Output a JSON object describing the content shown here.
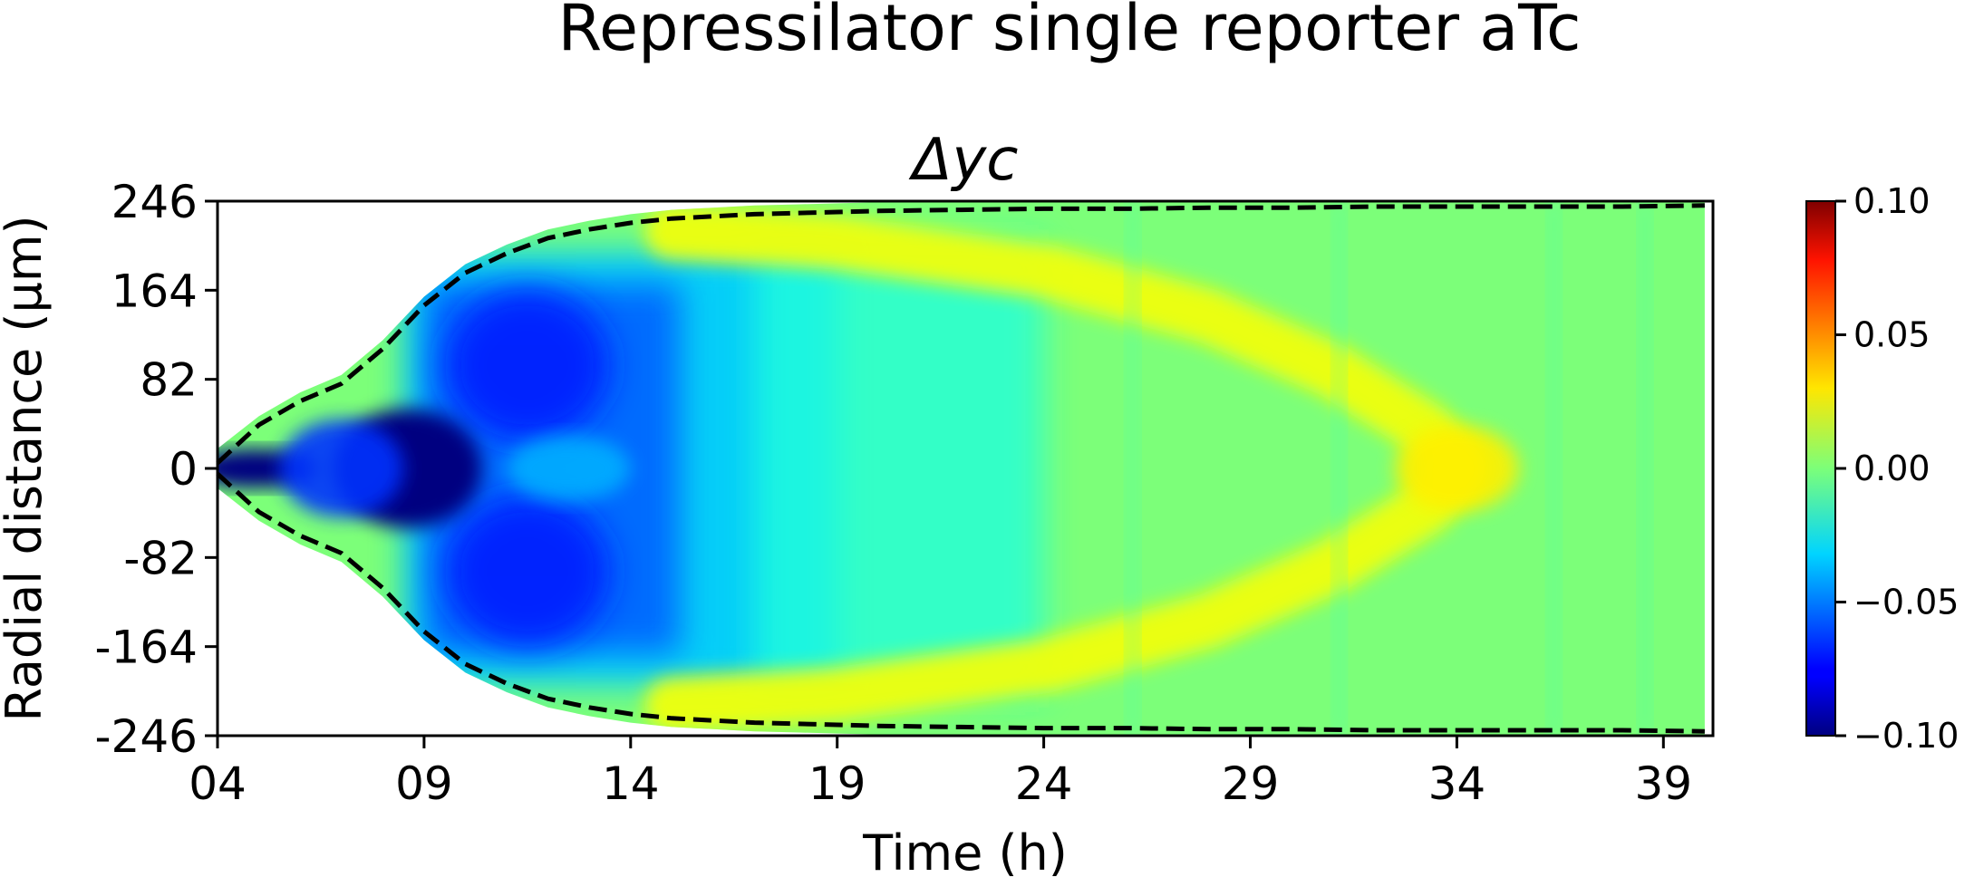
{
  "chart_data": {
    "type": "heatmap",
    "title": "Repressilator single reporter aTc",
    "subtitle": "Δyc",
    "xlabel": "Time (h)",
    "ylabel": "Radial distance (μm)",
    "xlim": [
      4,
      40.2
    ],
    "ylim": [
      -246,
      246
    ],
    "x_ticks": [
      "04",
      "09",
      "14",
      "19",
      "24",
      "29",
      "34",
      "39"
    ],
    "x_tick_values": [
      4,
      9,
      14,
      19,
      24,
      29,
      34,
      39
    ],
    "y_ticks": [
      "246",
      "164",
      "82",
      "0",
      "-82",
      "-164",
      "-246"
    ],
    "y_tick_values": [
      246,
      164,
      82,
      0,
      -82,
      -164,
      -246
    ],
    "colormap": "jet",
    "color_range": [
      -0.1,
      0.1
    ],
    "colorbar_ticks": [
      "0.10",
      "0.05",
      "0.00",
      "−0.05",
      "−0.10"
    ],
    "colorbar_tick_values": [
      0.1,
      0.05,
      0.0,
      -0.05,
      -0.1
    ],
    "colony_edge": {
      "style": "dashed",
      "color": "#000000",
      "time": [
        4,
        5,
        6,
        7,
        8,
        9,
        10,
        11,
        12,
        13,
        14,
        15,
        16,
        17,
        18,
        19,
        20,
        22,
        24,
        26,
        28,
        30,
        32,
        34,
        36,
        38,
        40
      ],
      "radius": [
        5,
        40,
        62,
        78,
        110,
        150,
        180,
        198,
        212,
        220,
        226,
        230,
        232,
        234,
        235,
        236,
        237,
        238,
        239,
        239,
        240,
        240,
        241,
        241,
        241,
        241,
        242
      ]
    },
    "feature_points": [
      {
        "t": 4.5,
        "r": 0,
        "value": -0.1
      },
      {
        "t": 8.5,
        "r": 0,
        "value": -0.1
      },
      {
        "t": 10,
        "r": 100,
        "value": -0.07
      },
      {
        "t": 34,
        "r": 0,
        "value": 0.025
      },
      {
        "t": 24,
        "r": 175,
        "value": 0.02
      },
      {
        "t": 15,
        "r": 220,
        "value": 0.015
      }
    ]
  }
}
